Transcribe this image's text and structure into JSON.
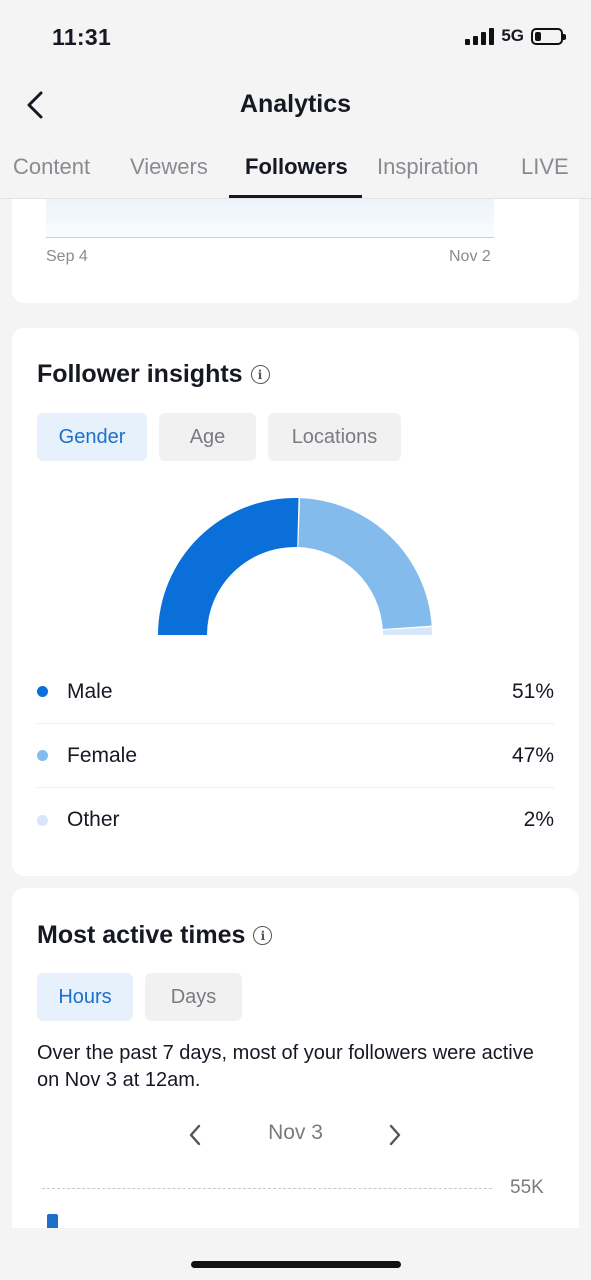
{
  "status_bar": {
    "time": "11:31",
    "network": "5G"
  },
  "nav": {
    "title": "Analytics"
  },
  "tabs": [
    {
      "label": "Content"
    },
    {
      "label": "Viewers"
    },
    {
      "label": "Followers",
      "active": true
    },
    {
      "label": "Inspiration"
    },
    {
      "label": "LIVE"
    }
  ],
  "trend_chart": {
    "x_start": "Sep 4",
    "x_end": "Nov 2"
  },
  "follower_insights": {
    "title": "Follower insights",
    "filters": [
      {
        "label": "Gender",
        "active": true
      },
      {
        "label": "Age"
      },
      {
        "label": "Locations"
      }
    ],
    "legend": [
      {
        "label": "Male",
        "value": "51%",
        "color": "#0a6fd8"
      },
      {
        "label": "Female",
        "value": "47%",
        "color": "#82bbec"
      },
      {
        "label": "Other",
        "value": "2%",
        "color": "#d5e7f8"
      }
    ]
  },
  "chart_data": {
    "type": "pie",
    "categories": [
      "Male",
      "Female",
      "Other"
    ],
    "values": [
      51,
      47,
      2
    ]
  },
  "most_active_times": {
    "title": "Most active times",
    "filters": [
      {
        "label": "Hours",
        "active": true
      },
      {
        "label": "Days"
      }
    ],
    "description": "Over the past 7 days, most of your followers were active on Nov 3 at 12am.",
    "date": "Nov 3",
    "max_label": "55K"
  }
}
